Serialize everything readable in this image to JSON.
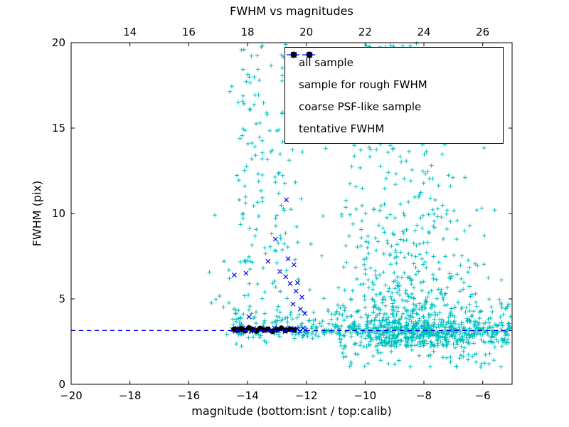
{
  "chart_data": {
    "type": "scatter",
    "title": "FWHM vs magnitudes",
    "xlabel": "magnitude (bottom:isnt / top:calib)",
    "ylabel": "FWHM (pix)",
    "xlim": [
      -20,
      -5
    ],
    "ylim": [
      0,
      20
    ],
    "grid": false,
    "legend_position": "upper right",
    "x_ticks_bottom": [
      {
        "value": -20,
        "label": "−20"
      },
      {
        "value": -18,
        "label": "−18"
      },
      {
        "value": -16,
        "label": "−16"
      },
      {
        "value": -14,
        "label": "−14"
      },
      {
        "value": -12,
        "label": "−12"
      },
      {
        "value": -10,
        "label": "−10"
      },
      {
        "value": -8,
        "label": "−8"
      },
      {
        "value": -6,
        "label": "−6"
      }
    ],
    "x_ticks_top": [
      {
        "value": -18,
        "label": "14"
      },
      {
        "value": -16,
        "label": "16"
      },
      {
        "value": -14,
        "label": "18"
      },
      {
        "value": -12,
        "label": "20"
      },
      {
        "value": -10,
        "label": "22"
      },
      {
        "value": -8,
        "label": "24"
      },
      {
        "value": -6,
        "label": "26"
      }
    ],
    "y_ticks": [
      {
        "value": 0,
        "label": "0"
      },
      {
        "value": 5,
        "label": "5"
      },
      {
        "value": 10,
        "label": "10"
      },
      {
        "value": 15,
        "label": "15"
      },
      {
        "value": 20,
        "label": "20"
      }
    ],
    "tentative_fwhm": 3.15,
    "colors": {
      "all_sample": "#00bfbf",
      "rough_fwhm_sample": "#0000ff",
      "psf_sample": "#000000",
      "tentative_line": "#0000ff",
      "axes": "#000000"
    },
    "legend": {
      "entries": [
        {
          "label": "all sample",
          "marker": "plus",
          "color": "#00bfbf"
        },
        {
          "label": "sample for rough FWHM",
          "marker": "cross",
          "color": "#0000ff"
        },
        {
          "label": "coarse PSF-like sample",
          "marker": "dot",
          "color": "#000000"
        },
        {
          "label": "tentative FWHM",
          "marker": "dashed",
          "color": "#0000ff"
        }
      ]
    },
    "series": [
      {
        "name": "all sample",
        "marker": "plus",
        "color": "#00bfbf",
        "seed": 42,
        "n_points_approx": 1600,
        "clusters": [
          {
            "n": 220,
            "x": {
              "dist": "uniform",
              "a": -12.4,
              "b": -5.05
            },
            "y": {
              "dist": "normal",
              "mu": 3.15,
              "sigma": 0.18,
              "lo": 2.6,
              "hi": 3.8
            }
          },
          {
            "n": 200,
            "x": {
              "dist": "uniform",
              "a": -12.4,
              "b": -5.05
            },
            "y": {
              "dist": "normal",
              "mu": 3.3,
              "sigma": 0.6,
              "lo": 1.9,
              "hi": 5.5
            }
          },
          {
            "n": 80,
            "x": {
              "dist": "uniform",
              "a": -14.6,
              "b": -12.4
            },
            "y": {
              "dist": "normal",
              "mu": 3.3,
              "sigma": 0.5,
              "lo": 2.0,
              "hi": 5.5
            }
          },
          {
            "n": 550,
            "x": {
              "dist": "normal",
              "mu": -8.6,
              "sigma": 1.0,
              "lo": -11.3,
              "hi": -5.3
            },
            "y": {
              "dist": "exp",
              "offset": 2.2,
              "scale": 2.4,
              "lo": 2.2,
              "hi": 20
            }
          },
          {
            "n": 190,
            "x": {
              "dist": "normal",
              "mu": -8.8,
              "sigma": 1.3,
              "lo": -11.5,
              "hi": -5.2
            },
            "y": {
              "dist": "uniform",
              "a": 8,
              "b": 20
            }
          },
          {
            "n": 70,
            "x": {
              "dist": "normal",
              "mu": -13.9,
              "sigma": 0.3,
              "lo": -14.7,
              "hi": -13.3
            },
            "y": {
              "dist": "uniform",
              "a": 3.6,
              "b": 20
            }
          },
          {
            "n": 55,
            "x": {
              "dist": "normal",
              "mu": -12.85,
              "sigma": 0.35,
              "lo": -13.6,
              "hi": -12.1
            },
            "y": {
              "dist": "uniform",
              "a": 3.6,
              "b": 20
            }
          },
          {
            "n": 45,
            "x": {
              "dist": "uniform",
              "a": -14.7,
              "b": -11.4
            },
            "y": {
              "dist": "uniform",
              "a": 3.5,
              "b": 20
            }
          },
          {
            "n": 120,
            "x": {
              "dist": "uniform",
              "a": -7.3,
              "b": -5.05
            },
            "y": {
              "dist": "exp",
              "offset": 2.4,
              "scale": 1.5,
              "lo": 2.2,
              "hi": 13
            }
          },
          {
            "n": 60,
            "x": {
              "dist": "uniform",
              "a": -10.8,
              "b": -5.1
            },
            "y": {
              "dist": "uniform",
              "a": 1.0,
              "b": 2.4
            }
          },
          {
            "n": 10,
            "x": {
              "dist": "uniform",
              "a": -15.3,
              "b": -14.6
            },
            "y": {
              "dist": "uniform",
              "a": 2.6,
              "b": 10
            }
          }
        ]
      },
      {
        "name": "sample for rough FWHM",
        "marker": "cross",
        "color": "#0000ff",
        "points": [
          [
            -14.5,
            3.2
          ],
          [
            -14.42,
            3.1
          ],
          [
            -14.34,
            3.28
          ],
          [
            -14.25,
            3.16
          ],
          [
            -14.16,
            3.3
          ],
          [
            -14.07,
            3.14
          ],
          [
            -13.97,
            3.24
          ],
          [
            -13.88,
            3.1
          ],
          [
            -13.78,
            3.27
          ],
          [
            -13.65,
            3.18
          ],
          [
            -13.52,
            3.3
          ],
          [
            -13.42,
            3.12
          ],
          [
            -13.31,
            3.24
          ],
          [
            -13.2,
            3.15
          ],
          [
            -13.08,
            3.3
          ],
          [
            -12.95,
            3.13
          ],
          [
            -12.83,
            3.26
          ],
          [
            -12.72,
            3.1
          ],
          [
            -12.62,
            3.22
          ],
          [
            -12.52,
            3.3
          ],
          [
            -12.42,
            3.15
          ],
          [
            -12.31,
            3.25
          ],
          [
            -12.21,
            3.1
          ],
          [
            -12.11,
            3.28
          ],
          [
            -12.03,
            3.17
          ],
          [
            -13.05,
            8.5
          ],
          [
            -12.68,
            10.8
          ],
          [
            -13.3,
            7.2
          ],
          [
            -12.62,
            7.35
          ],
          [
            -12.42,
            7.0
          ],
          [
            -12.9,
            6.6
          ],
          [
            -14.05,
            6.5
          ],
          [
            -14.45,
            6.4
          ],
          [
            -12.7,
            6.3
          ],
          [
            -12.3,
            5.95
          ],
          [
            -12.55,
            5.9
          ],
          [
            -12.35,
            5.45
          ],
          [
            -12.15,
            5.1
          ],
          [
            -12.45,
            4.7
          ],
          [
            -12.2,
            4.4
          ],
          [
            -12.05,
            4.15
          ],
          [
            -13.95,
            3.95
          ]
        ]
      },
      {
        "name": "coarse PSF-like sample",
        "marker": "dot",
        "color": "#000000",
        "points": [
          [
            -14.45,
            3.22
          ],
          [
            -14.32,
            3.18
          ],
          [
            -14.2,
            3.25
          ],
          [
            -14.08,
            3.15
          ],
          [
            -13.95,
            3.3
          ],
          [
            -13.82,
            3.2
          ],
          [
            -13.7,
            3.12
          ],
          [
            -13.58,
            3.26
          ],
          [
            -13.45,
            3.18
          ],
          [
            -13.3,
            3.22
          ],
          [
            -13.15,
            3.1
          ],
          [
            -13.0,
            3.2
          ],
          [
            -12.85,
            3.28
          ],
          [
            -12.7,
            3.16
          ],
          [
            -12.55,
            3.22
          ],
          [
            -12.42,
            3.18
          ]
        ]
      },
      {
        "name": "tentative FWHM",
        "type": "hline",
        "y": 3.15,
        "color": "#0000ff",
        "style": "dashed"
      }
    ]
  }
}
